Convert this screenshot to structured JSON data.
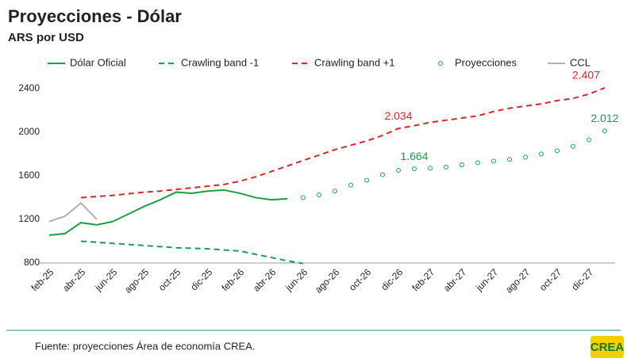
{
  "chart_data": {
    "type": "line",
    "title": "Proyecciones - Dólar",
    "subtitle": "ARS por USD",
    "categories": [
      "feb-25",
      null,
      "abr-25",
      null,
      "jun-25",
      null,
      "ago-25",
      null,
      "oct-25",
      null,
      "dic-25",
      null,
      "feb-26",
      null,
      "abr-26",
      null,
      "jun-26",
      null,
      "ago-26",
      null,
      "oct-26",
      null,
      "dic-26",
      null,
      "feb-27",
      null,
      "abr-27",
      null,
      "jun-27",
      null,
      "ago-27",
      null,
      "oct-27",
      null,
      "dic-27",
      null
    ],
    "ylim": [
      800,
      2450
    ],
    "yticks": [
      800,
      1200,
      1600,
      2000,
      2400
    ],
    "grid": false,
    "series": [
      {
        "name": "Dólar Oficial",
        "color": "#1a9e4a",
        "style": "solid",
        "values": [
          1055,
          1070,
          1170,
          1150,
          1180,
          1250,
          1320,
          1380,
          1450,
          1440,
          1460,
          1470,
          1440,
          1400,
          1380,
          1390,
          null,
          null,
          null,
          null,
          null,
          null,
          null,
          null,
          null,
          null,
          null,
          null,
          null,
          null,
          null,
          null,
          null,
          null,
          null,
          null
        ]
      },
      {
        "name": "Crawling band -1",
        "color": "#1a9e4a",
        "style": "dashed",
        "values": [
          null,
          null,
          1000,
          990,
          980,
          970,
          960,
          950,
          940,
          935,
          930,
          920,
          910,
          880,
          850,
          820,
          795,
          null,
          null,
          null,
          null,
          null,
          null,
          null,
          null,
          null,
          null,
          null,
          null,
          null,
          null,
          null,
          null,
          null,
          null,
          null
        ]
      },
      {
        "name": "Crawling band +1",
        "color": "#d62728",
        "style": "dashed",
        "values": [
          null,
          null,
          1400,
          1410,
          1420,
          1435,
          1450,
          1460,
          1475,
          1490,
          1505,
          1520,
          1550,
          1590,
          1640,
          1690,
          1740,
          1790,
          1840,
          1880,
          1920,
          1970,
          2034,
          2060,
          2090,
          2110,
          2130,
          2150,
          2190,
          2220,
          2240,
          2260,
          2290,
          2310,
          2350,
          2407
        ],
        "value_labels": [
          null,
          null,
          null,
          null,
          null,
          null,
          null,
          null,
          null,
          null,
          null,
          null,
          null,
          null,
          null,
          null,
          null,
          null,
          null,
          null,
          null,
          null,
          "2.034",
          null,
          null,
          null,
          null,
          null,
          null,
          null,
          null,
          null,
          null,
          null,
          null,
          "2.407"
        ]
      },
      {
        "name": "Proyecciones",
        "color": "#1a9e4a",
        "style": "markers",
        "values": [
          null,
          null,
          null,
          null,
          null,
          null,
          null,
          null,
          null,
          null,
          null,
          null,
          null,
          null,
          null,
          null,
          1400,
          1425,
          1460,
          1515,
          1560,
          1610,
          1650,
          1664,
          1670,
          1680,
          1700,
          1720,
          1735,
          1750,
          1770,
          1800,
          1830,
          1870,
          1930,
          2012
        ],
        "value_labels": [
          null,
          null,
          null,
          null,
          null,
          null,
          null,
          null,
          null,
          null,
          null,
          null,
          null,
          null,
          null,
          null,
          null,
          null,
          null,
          null,
          null,
          null,
          null,
          "1.664",
          null,
          null,
          null,
          null,
          null,
          null,
          null,
          null,
          null,
          null,
          null,
          "2.012"
        ]
      },
      {
        "name": "CCL",
        "color": "#b0b0b0",
        "style": "solid",
        "values": [
          1180,
          1230,
          1350,
          1200,
          null,
          null,
          null,
          null,
          null,
          null,
          null,
          null,
          null,
          null,
          null,
          null,
          null,
          null,
          null,
          null,
          null,
          null,
          null,
          null,
          null,
          null,
          null,
          null,
          null,
          null,
          null,
          null,
          null,
          null,
          null,
          null
        ]
      }
    ]
  },
  "footer": {
    "source": "Fuente: proyecciones Área de economía CREA.",
    "logo": "CREA"
  }
}
